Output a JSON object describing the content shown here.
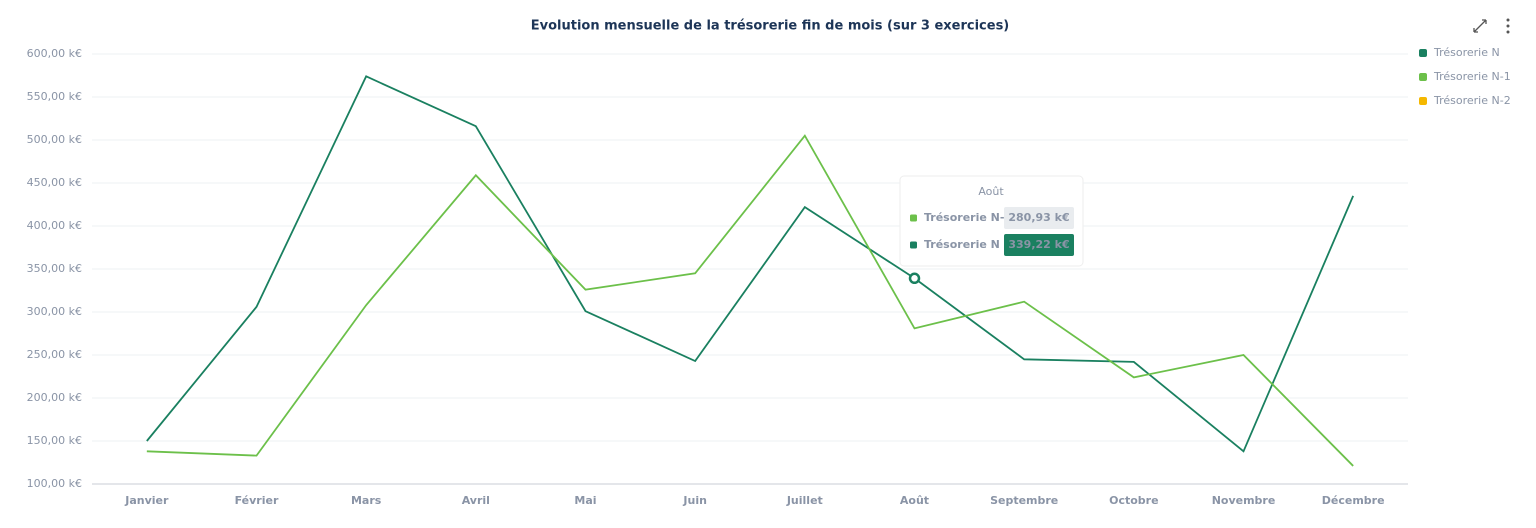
{
  "chart_data": {
    "type": "line",
    "title": "Evolution mensuelle de la trésorerie fin de mois (sur 3 exercices)",
    "categories": [
      "Janvier",
      "Février",
      "Mars",
      "Avril",
      "Mai",
      "Juin",
      "Juillet",
      "Août",
      "Septembre",
      "Octobre",
      "Novembre",
      "Décembre"
    ],
    "series": [
      {
        "name": "Trésorerie N",
        "color": "#1a8060",
        "values": [
          150,
          306,
          574,
          516,
          301,
          243,
          422,
          339.22,
          245,
          242,
          138,
          435
        ],
        "value_labels": [
          null,
          null,
          null,
          null,
          null,
          null,
          null,
          "339,22 k€",
          null,
          null,
          null,
          null
        ]
      },
      {
        "name": "Trésorerie N-1",
        "color": "#6cc04a",
        "values": [
          138,
          133,
          308,
          459,
          326,
          345,
          505,
          280.93,
          312,
          224,
          250,
          121
        ],
        "value_labels": [
          null,
          null,
          null,
          null,
          null,
          null,
          null,
          "280,93 k€",
          null,
          null,
          null,
          null
        ]
      },
      {
        "name": "Trésorerie N-2",
        "color": "#f5b800",
        "values": [
          null,
          null,
          null,
          null,
          null,
          null,
          null,
          null,
          null,
          null,
          null,
          null
        ]
      }
    ],
    "ylim": [
      100,
      600
    ],
    "yticks": [
      {
        "value": 100,
        "label": "100,00 k€"
      },
      {
        "value": 150,
        "label": "150,00 k€"
      },
      {
        "value": 200,
        "label": "200,00 k€"
      },
      {
        "value": 250,
        "label": "250,00 k€"
      },
      {
        "value": 300,
        "label": "300,00 k€"
      },
      {
        "value": 350,
        "label": "350,00 k€"
      },
      {
        "value": 400,
        "label": "400,00 k€"
      },
      {
        "value": 450,
        "label": "450,00 k€"
      },
      {
        "value": 500,
        "label": "500,00 k€"
      },
      {
        "value": 550,
        "label": "550,00 k€"
      },
      {
        "value": 600,
        "label": "600,00 k€"
      }
    ],
    "grid": true,
    "legend": "top-right",
    "tooltip_index": 7
  }
}
